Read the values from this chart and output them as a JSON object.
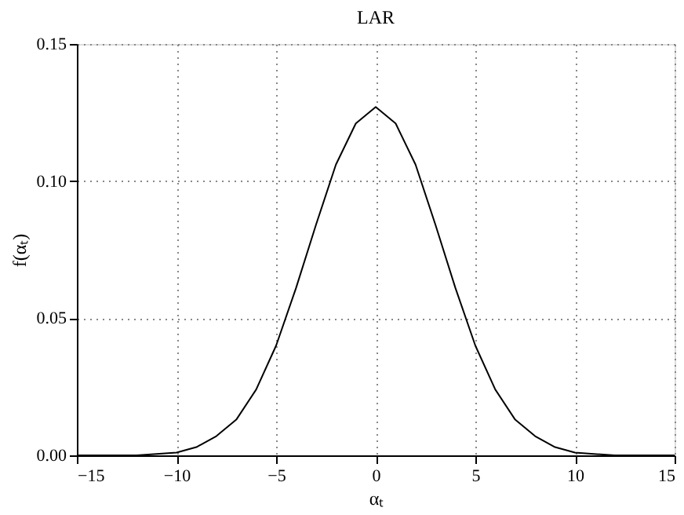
{
  "chart_data": {
    "type": "line",
    "title": "LAR",
    "xlabel": "αₜ",
    "ylabel": "f(αₜ)",
    "x": [
      -15,
      -12,
      -10,
      -9,
      -8,
      -7,
      -6,
      -5,
      -4,
      -3,
      -2,
      -1,
      0,
      1,
      2,
      3,
      4,
      5,
      6,
      7,
      8,
      9,
      10,
      12,
      15
    ],
    "series": [
      {
        "color": "#000000",
        "values": [
          0,
          0,
          0.001,
          0.003,
          0.007,
          0.013,
          0.024,
          0.04,
          0.061,
          0.084,
          0.106,
          0.121,
          0.127,
          0.121,
          0.106,
          0.084,
          0.061,
          0.04,
          0.024,
          0.013,
          0.007,
          0.003,
          0.001,
          0,
          0
        ]
      }
    ],
    "xlim": [
      -15,
      15
    ],
    "xticks": [
      -15,
      -10,
      -5,
      0,
      5,
      10,
      15
    ],
    "ylim": [
      0,
      0.15
    ],
    "yticks": [
      {
        "value": 0,
        "label": "0.00"
      },
      {
        "value": 0.05,
        "label": "0.05"
      },
      {
        "value": 0.1,
        "label": "0.10"
      },
      {
        "value": 0.15,
        "label": "0.15"
      }
    ],
    "grid": true,
    "line_style": "solid",
    "marker": "none",
    "legend": false
  }
}
